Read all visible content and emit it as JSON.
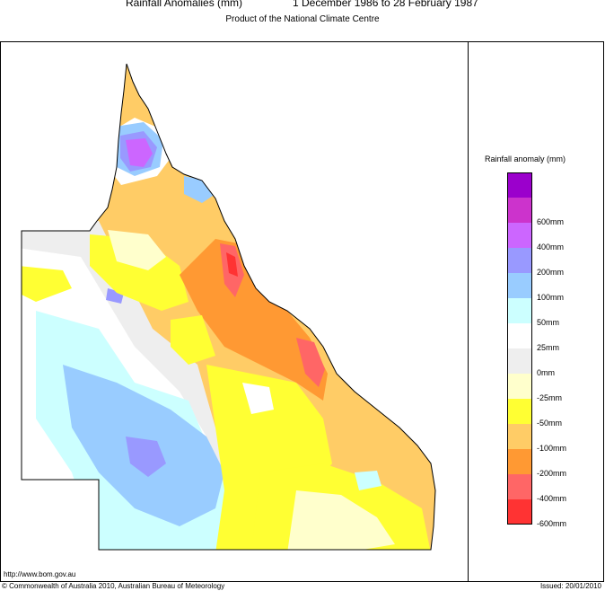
{
  "header": {
    "title": "Rainfall Anomalies (mm)",
    "period": "1 December 1986 to 28 February 1987",
    "subtitle": "Product of the National Climate Centre"
  },
  "legend": {
    "title": "Rainfall anomaly (mm)",
    "items": [
      {
        "label": "",
        "color": "#9b00cc"
      },
      {
        "label": "600mm",
        "color": "#cc33cc"
      },
      {
        "label": "400mm",
        "color": "#cc66ff"
      },
      {
        "label": "200mm",
        "color": "#9999ff"
      },
      {
        "label": "100mm",
        "color": "#99ccff"
      },
      {
        "label": "50mm",
        "color": "#ccffff"
      },
      {
        "label": "25mm",
        "color": "#ffffff"
      },
      {
        "label": "0mm",
        "color": "#eeeeee"
      },
      {
        "label": "-25mm",
        "color": "#ffffcc"
      },
      {
        "label": "-50mm",
        "color": "#ffff33"
      },
      {
        "label": "-100mm",
        "color": "#ffcc66"
      },
      {
        "label": "-200mm",
        "color": "#ff9933"
      },
      {
        "label": "-400mm",
        "color": "#ff6666"
      },
      {
        "label": "-600mm",
        "color": "#ff3333"
      }
    ]
  },
  "footer": {
    "url": "http://www.bom.gov.au",
    "copyright": "© Commonwealth of Australia 2010, Australian Bureau of Meteorology",
    "issued": "Issued: 20/01/2010"
  }
}
